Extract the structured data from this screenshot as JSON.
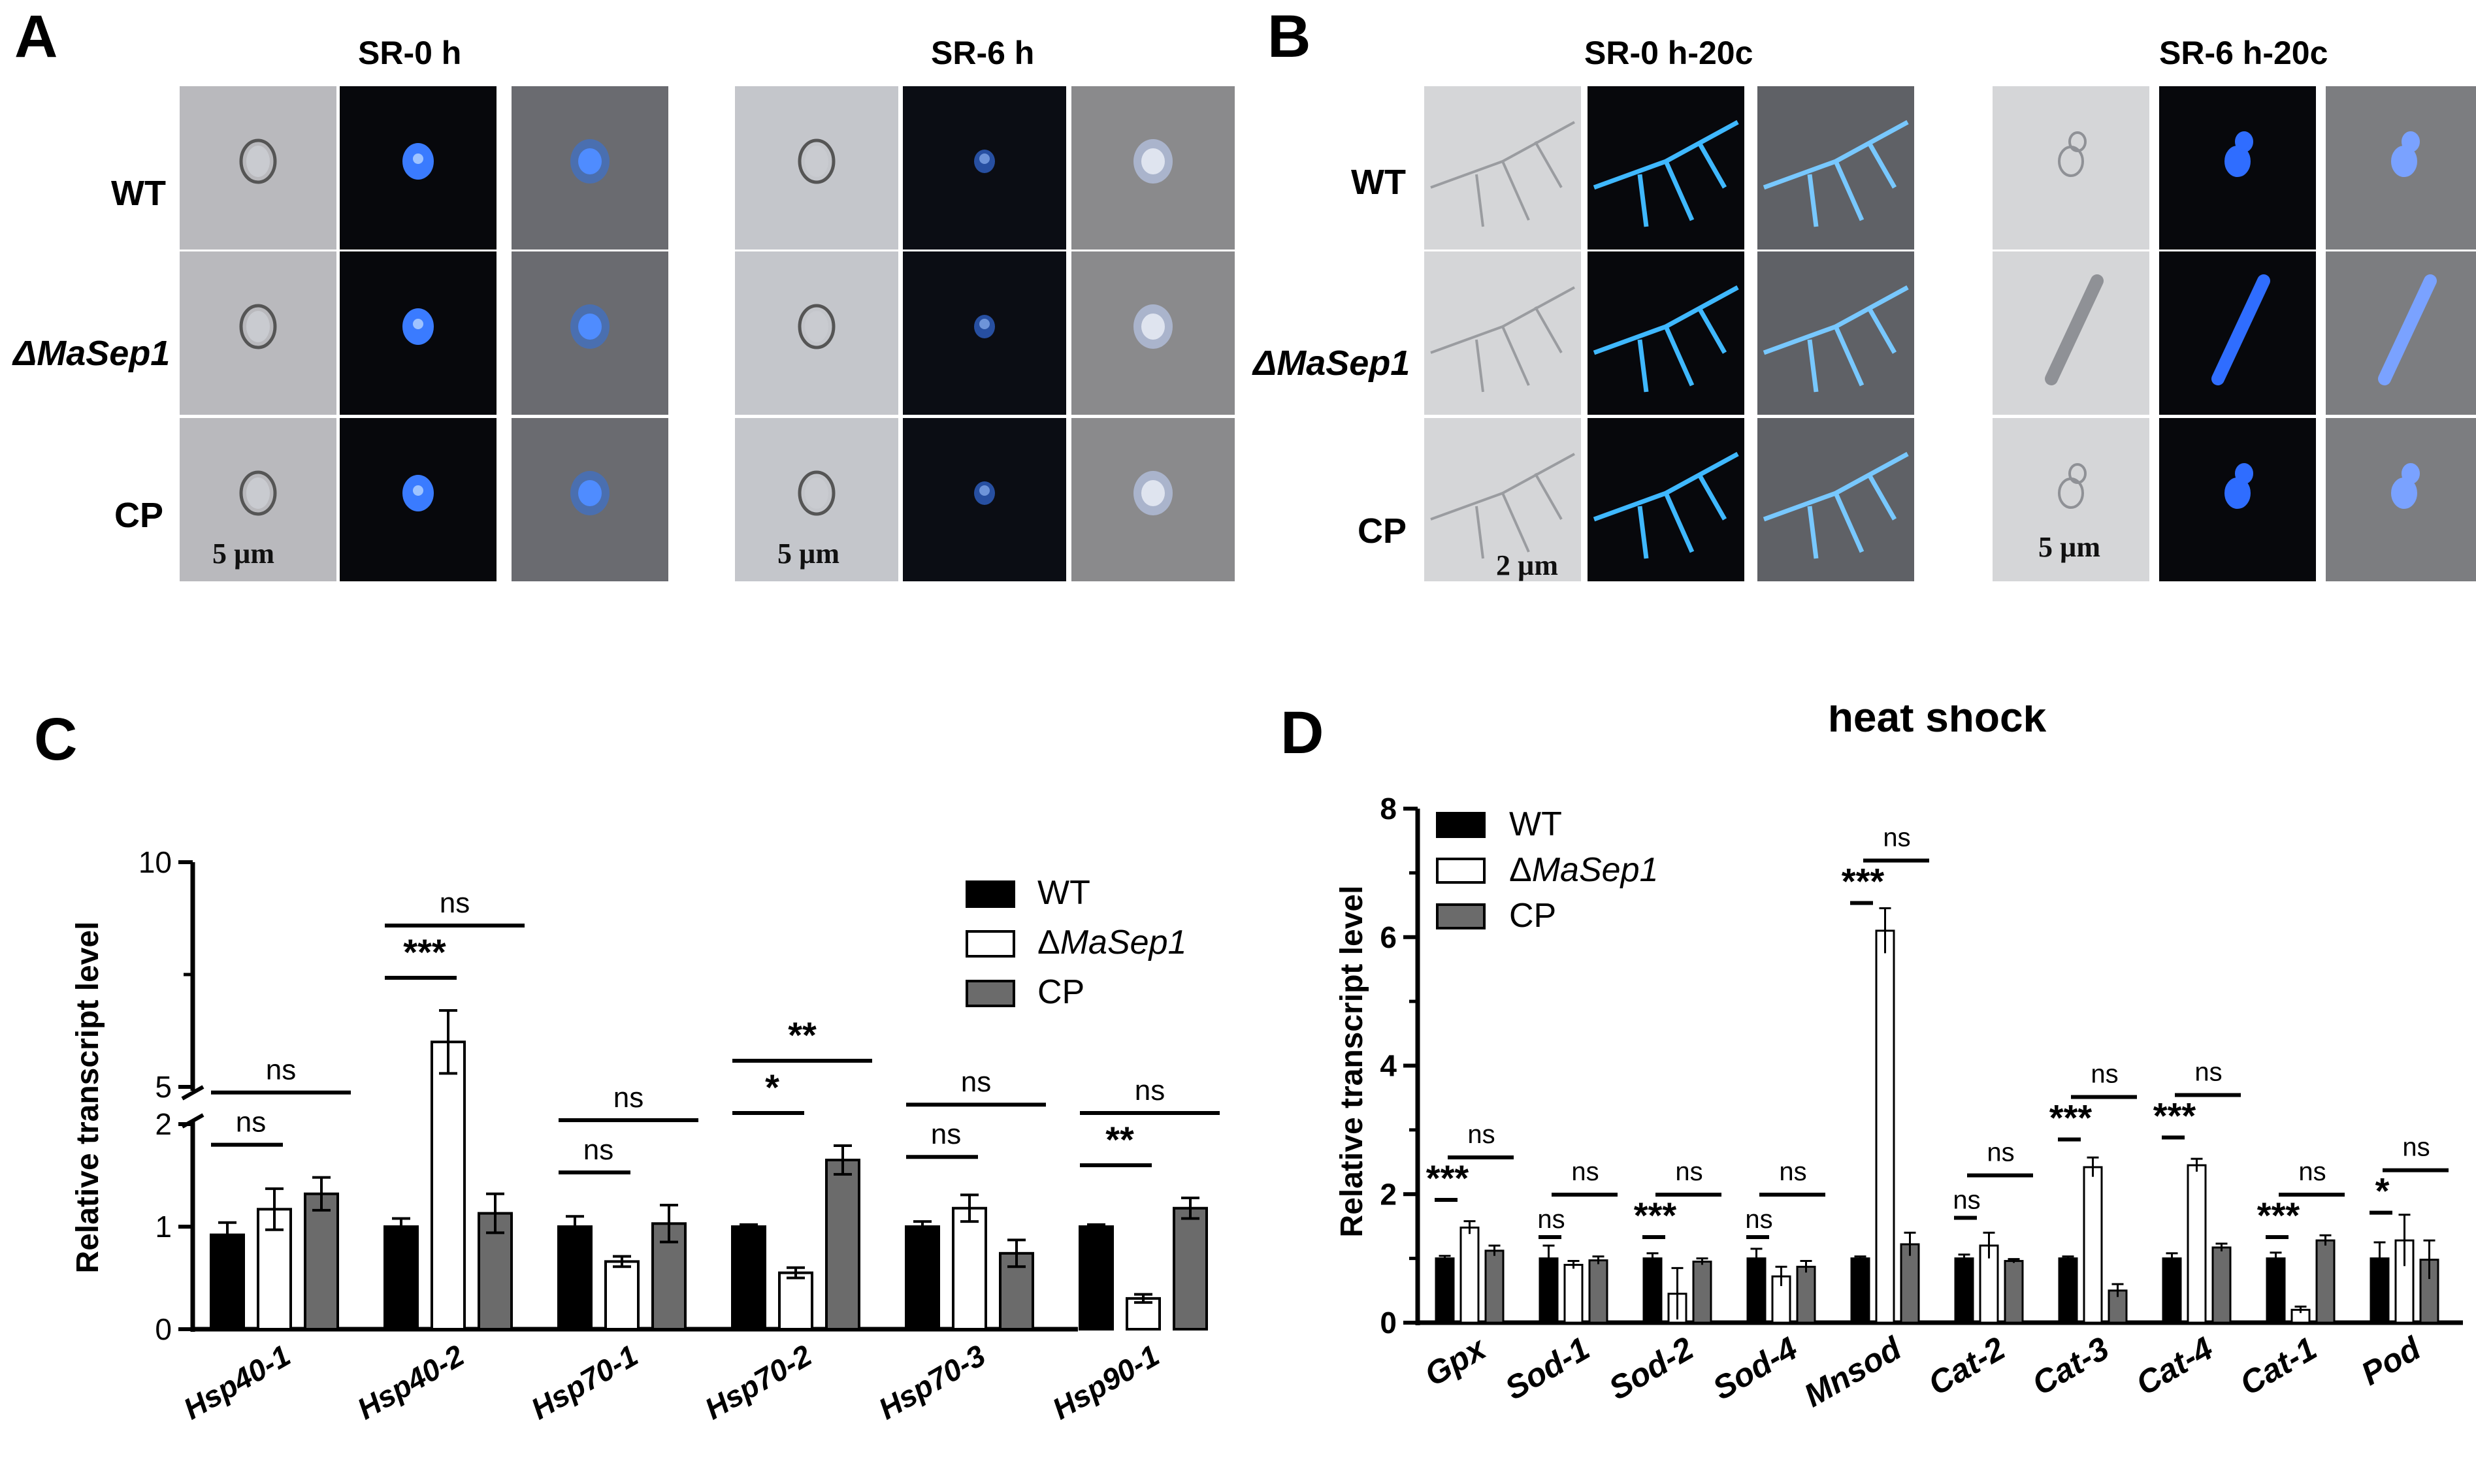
{
  "panels": {
    "a": "A",
    "b": "B",
    "c": "C",
    "d": "D"
  },
  "panel_a": {
    "titles": [
      "SR-0 h",
      "SR-6 h"
    ],
    "rows": [
      "WT",
      "ΔMaSep1",
      "CP"
    ],
    "scale_left": "5 µm",
    "scale_right": "5 µm"
  },
  "panel_b": {
    "titles": [
      "SR-0 h-20c",
      "SR-6 h-20c"
    ],
    "rows": [
      "WT",
      "ΔMaSep1",
      "CP"
    ],
    "scale_left": "2 µm",
    "scale_right": "5 µm"
  },
  "colors": {
    "wt": "#000000",
    "mutant": "#ffffff",
    "cp": "#6b6b6b",
    "blue": "#3a7bff"
  },
  "legend": {
    "wt": "WT",
    "delta": "Δ",
    "mutant_italic": "MaSep1",
    "cp": "CP"
  },
  "chart_data": [
    {
      "type": "bar",
      "ylabel": "Relative transcript level",
      "yaxis_broken": true,
      "yticks": [
        "0",
        "1",
        "2",
        "5",
        "10"
      ],
      "categories": [
        "Hsp40-1",
        "Hsp40-2",
        "Hsp70-1",
        "Hsp70-2",
        "Hsp70-3",
        "Hsp90-1"
      ],
      "series": [
        {
          "name": "WT",
          "values": [
            0.92,
            1.0,
            1.0,
            1.0,
            1.0,
            1.0
          ],
          "errors": [
            0.12,
            0.08,
            0.1,
            0.02,
            0.05,
            0.02
          ]
        },
        {
          "name": "ΔMaSep1",
          "values": [
            1.17,
            6.0,
            0.66,
            0.55,
            1.18,
            0.3
          ],
          "errors": [
            0.2,
            0.7,
            0.05,
            0.05,
            0.13,
            0.04
          ]
        },
        {
          "name": "CP",
          "values": [
            1.32,
            1.13,
            1.03,
            1.65,
            0.74,
            1.18
          ],
          "errors": [
            0.16,
            0.19,
            0.18,
            0.14,
            0.13,
            0.1
          ]
        }
      ],
      "significance": [
        {
          "category": "Hsp40-1",
          "wt_vs_mutant": "ns",
          "wt_vs_cp": "ns"
        },
        {
          "category": "Hsp40-2",
          "wt_vs_mutant": "***",
          "wt_vs_cp": "ns"
        },
        {
          "category": "Hsp70-1",
          "wt_vs_mutant": "ns",
          "wt_vs_cp": "ns"
        },
        {
          "category": "Hsp70-2",
          "wt_vs_mutant": "*",
          "wt_vs_cp": "**"
        },
        {
          "category": "Hsp70-3",
          "wt_vs_mutant": "ns",
          "wt_vs_cp": "ns"
        },
        {
          "category": "Hsp90-1",
          "wt_vs_mutant": "**",
          "wt_vs_cp": "ns"
        }
      ]
    },
    {
      "type": "bar",
      "title": "heat shock",
      "ylabel": "Relative transcript level",
      "ylim": [
        0,
        8
      ],
      "yticks": [
        "0",
        "2",
        "4",
        "6",
        "8"
      ],
      "categories": [
        "Gpx",
        "Sod-1",
        "Sod-2",
        "Sod-4",
        "Mnsod",
        "Cat-2",
        "Cat-3",
        "Cat-4",
        "Cat-1",
        "Pod"
      ],
      "series": [
        {
          "name": "WT",
          "values": [
            1.0,
            1.0,
            1.0,
            1.0,
            1.0,
            1.0,
            1.0,
            1.0,
            1.0,
            1.0
          ],
          "errors": [
            0.04,
            0.2,
            0.08,
            0.15,
            0.03,
            0.06,
            0.03,
            0.08,
            0.09,
            0.25
          ]
        },
        {
          "name": "ΔMaSep1",
          "values": [
            1.48,
            0.9,
            0.45,
            0.72,
            6.1,
            1.2,
            2.42,
            2.45,
            0.2,
            1.28
          ],
          "errors": [
            0.1,
            0.06,
            0.4,
            0.15,
            0.35,
            0.2,
            0.15,
            0.1,
            0.05,
            0.4
          ]
        },
        {
          "name": "CP",
          "values": [
            1.12,
            0.97,
            0.95,
            0.87,
            1.22,
            0.96,
            0.5,
            1.17,
            1.28,
            0.98
          ],
          " errors": null
        }
      ],
      "significance": [
        {
          "category": "Gpx",
          "wt_vs_mutant": "***",
          "wt_vs_cp": "ns"
        },
        {
          "category": "Sod-1",
          "wt_vs_mutant": "ns",
          "wt_vs_cp": "ns"
        },
        {
          "category": "Sod-2",
          "wt_vs_mutant": "***",
          "wt_vs_cp": "ns"
        },
        {
          "category": "Sod-4",
          "wt_vs_mutant": "ns",
          "wt_vs_cp": "ns"
        },
        {
          "category": "Mnsod",
          "wt_vs_mutant": "***",
          "wt_vs_cp": "ns"
        },
        {
          "category": "Cat-2",
          "wt_vs_mutant": "ns",
          "wt_vs_cp": "ns"
        },
        {
          "category": "Cat-3",
          "wt_vs_mutant": "***",
          "wt_vs_cp": "ns"
        },
        {
          "category": "Cat-4",
          "wt_vs_mutant": "***",
          "wt_vs_cp": "ns"
        },
        {
          "category": "Cat-1",
          "wt_vs_mutant": "***",
          "wt_vs_cp": "ns"
        },
        {
          "category": "Pod",
          "wt_vs_mutant": "*",
          "wt_vs_cp": "ns"
        }
      ]
    }
  ]
}
